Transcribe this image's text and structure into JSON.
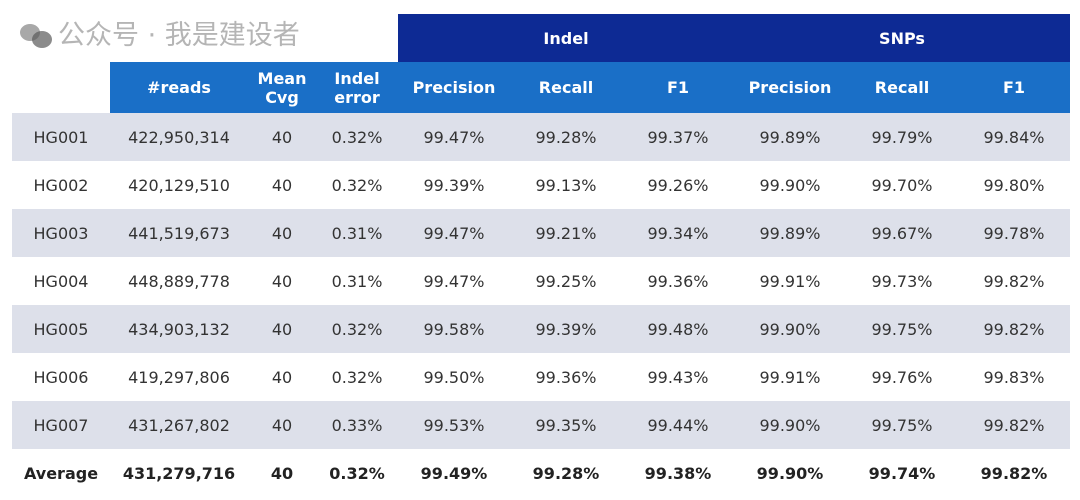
{
  "header": {
    "groups": [
      {
        "label": "Indel"
      },
      {
        "label": "SNPs"
      }
    ],
    "columns": [
      "#reads",
      "Mean Cvg",
      "Indel error",
      "Precision",
      "Recall",
      "F1",
      "Precision",
      "Recall",
      "F1"
    ]
  },
  "rows": [
    [
      "HG001",
      "422,950,314",
      "40",
      "0.32%",
      "99.47%",
      "99.28%",
      "99.37%",
      "99.89%",
      "99.79%",
      "99.84%"
    ],
    [
      "HG002",
      "420,129,510",
      "40",
      "0.32%",
      "99.39%",
      "99.13%",
      "99.26%",
      "99.90%",
      "99.70%",
      "99.80%"
    ],
    [
      "HG003",
      "441,519,673",
      "40",
      "0.31%",
      "99.47%",
      "99.21%",
      "99.34%",
      "99.89%",
      "99.67%",
      "99.78%"
    ],
    [
      "HG004",
      "448,889,778",
      "40",
      "0.31%",
      "99.47%",
      "99.25%",
      "99.36%",
      "99.91%",
      "99.73%",
      "99.82%"
    ],
    [
      "HG005",
      "434,903,132",
      "40",
      "0.32%",
      "99.58%",
      "99.39%",
      "99.48%",
      "99.90%",
      "99.75%",
      "99.82%"
    ],
    [
      "HG006",
      "419,297,806",
      "40",
      "0.32%",
      "99.50%",
      "99.36%",
      "99.43%",
      "99.91%",
      "99.76%",
      "99.83%"
    ],
    [
      "HG007",
      "431,267,802",
      "40",
      "0.33%",
      "99.53%",
      "99.35%",
      "99.44%",
      "99.90%",
      "99.75%",
      "99.82%"
    ]
  ],
  "average": [
    "Average",
    "431,279,716",
    "40",
    "0.32%",
    "99.49%",
    "99.28%",
    "99.38%",
    "99.90%",
    "99.74%",
    "99.82%"
  ],
  "watermark": "公众号 · 我是建设者",
  "colors": {
    "group_header": "#0d2a94",
    "column_header": "#1a6fc7",
    "row_alt": "#dde0ea"
  }
}
